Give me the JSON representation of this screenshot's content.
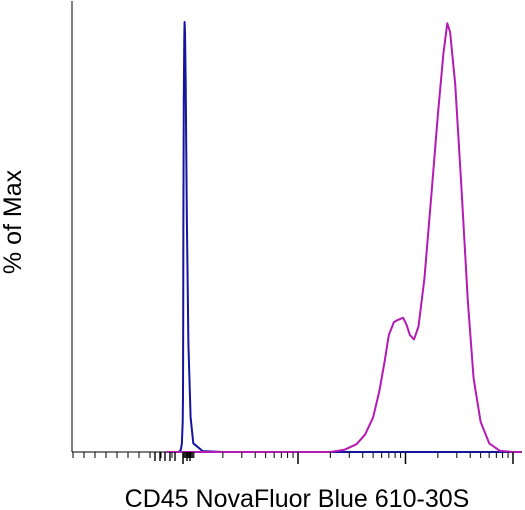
{
  "chart_data": {
    "type": "area",
    "title": "",
    "xlabel": "CD45 NovaFluor Blue 610-30S",
    "ylabel": "% of Max",
    "x_scale": "log",
    "xlim": [
      -100,
      1000000
    ],
    "ylim": [
      0,
      100
    ],
    "grid": false,
    "legend": "none",
    "series": [
      {
        "color": "#1515a0",
        "points": [
          [
            -150,
            0
          ],
          [
            -40,
            0
          ],
          [
            -20,
            0.5
          ],
          [
            -10,
            2
          ],
          [
            -3,
            7
          ],
          [
            0,
            13
          ],
          [
            2,
            30
          ],
          [
            4,
            55
          ],
          [
            7,
            82
          ],
          [
            12,
            96
          ],
          [
            15,
            99.3
          ],
          [
            18,
            97
          ],
          [
            25,
            85
          ],
          [
            35,
            55
          ],
          [
            50,
            25
          ],
          [
            70,
            8
          ],
          [
            95,
            2
          ],
          [
            130,
            0.2
          ],
          [
            200,
            0
          ],
          [
            1000000,
            0
          ]
        ]
      },
      {
        "color": "#b41ab4",
        "points": [
          [
            -150,
            0
          ],
          [
            2000,
            0
          ],
          [
            2700,
            0.5
          ],
          [
            3500,
            1.8
          ],
          [
            4200,
            4
          ],
          [
            5000,
            8
          ],
          [
            5700,
            14
          ],
          [
            6400,
            21
          ],
          [
            7000,
            27
          ],
          [
            7800,
            30
          ],
          [
            8500,
            30.5
          ],
          [
            9500,
            31
          ],
          [
            10200,
            29.5
          ],
          [
            11000,
            27
          ],
          [
            12000,
            26
          ],
          [
            13200,
            29
          ],
          [
            15000,
            40
          ],
          [
            17500,
            60
          ],
          [
            20000,
            78
          ],
          [
            22500,
            92
          ],
          [
            24500,
            99
          ],
          [
            26000,
            97
          ],
          [
            29000,
            85
          ],
          [
            33000,
            62
          ],
          [
            38000,
            35
          ],
          [
            43000,
            17
          ],
          [
            50000,
            7
          ],
          [
            60000,
            2
          ],
          [
            75000,
            0.3
          ],
          [
            100000,
            0
          ],
          [
            1000000,
            0
          ]
        ]
      }
    ]
  }
}
